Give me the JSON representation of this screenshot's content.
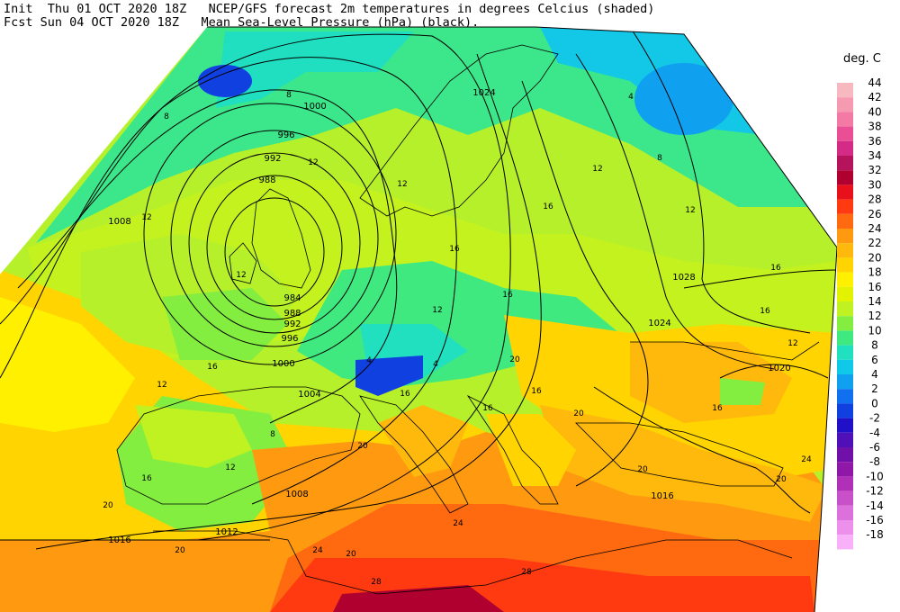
{
  "header": {
    "init_line": "Init  Thu 01 OCT 2020 18Z   NCEP/GFS forecast 2m temperatures in degrees Celcius (shaded)",
    "fcst_line": "Fcst Sun 04 OCT 2020 18Z   Mean Sea-Level Pressure (hPa) (black)."
  },
  "legend": {
    "title": "deg. C",
    "entries": [
      {
        "value": "44",
        "color": "#f7b8c0"
      },
      {
        "value": "42",
        "color": "#f59ab0"
      },
      {
        "value": "40",
        "color": "#f27aa4"
      },
      {
        "value": "38",
        "color": "#ea4f96"
      },
      {
        "value": "36",
        "color": "#d42c86"
      },
      {
        "value": "34",
        "color": "#b5145c"
      },
      {
        "value": "32",
        "color": "#b00030"
      },
      {
        "value": "30",
        "color": "#e8101a"
      },
      {
        "value": "28",
        "color": "#ff3a10"
      },
      {
        "value": "26",
        "color": "#ff6a10"
      },
      {
        "value": "24",
        "color": "#ff9a10"
      },
      {
        "value": "22",
        "color": "#ffb80c"
      },
      {
        "value": "20",
        "color": "#ffd400"
      },
      {
        "value": "18",
        "color": "#fff000"
      },
      {
        "value": "16",
        "color": "#e2f200"
      },
      {
        "value": "14",
        "color": "#bff220"
      },
      {
        "value": "12",
        "color": "#84ee40"
      },
      {
        "value": "10",
        "color": "#40e880"
      },
      {
        "value": "8",
        "color": "#20e0c0"
      },
      {
        "value": "6",
        "color": "#10c8e8"
      },
      {
        "value": "4",
        "color": "#10a0f0"
      },
      {
        "value": "2",
        "color": "#1070f0"
      },
      {
        "value": "0",
        "color": "#1040e0"
      },
      {
        "value": "-2",
        "color": "#2010c8"
      },
      {
        "value": "-4",
        "color": "#5010b8"
      },
      {
        "value": "-6",
        "color": "#7010a8"
      },
      {
        "value": "-8",
        "color": "#9018a8"
      },
      {
        "value": "-10",
        "color": "#b030b8"
      },
      {
        "value": "-12",
        "color": "#c850c8"
      },
      {
        "value": "-14",
        "color": "#dc70dc"
      },
      {
        "value": "-16",
        "color": "#ec90ec"
      },
      {
        "value": "-18",
        "color": "#f8b0f8"
      }
    ]
  },
  "map": {
    "pressure_labels": [
      "1000",
      "996",
      "992",
      "988",
      "984",
      "988",
      "992",
      "996",
      "1000",
      "1004",
      "1008",
      "1008",
      "1012",
      "1016",
      "1016",
      "1020",
      "1024",
      "1024",
      "1028"
    ],
    "temperature_labels": [
      "8",
      "8",
      "8",
      "8",
      "12",
      "12",
      "12",
      "12",
      "12",
      "12",
      "12",
      "12",
      "12",
      "16",
      "16",
      "16",
      "16",
      "16",
      "16",
      "16",
      "16",
      "16",
      "20",
      "20",
      "20",
      "20",
      "20",
      "20",
      "20",
      "20",
      "24",
      "24",
      "24",
      "28",
      "28",
      "4",
      "4",
      "4",
      "12",
      "16",
      "16"
    ]
  }
}
